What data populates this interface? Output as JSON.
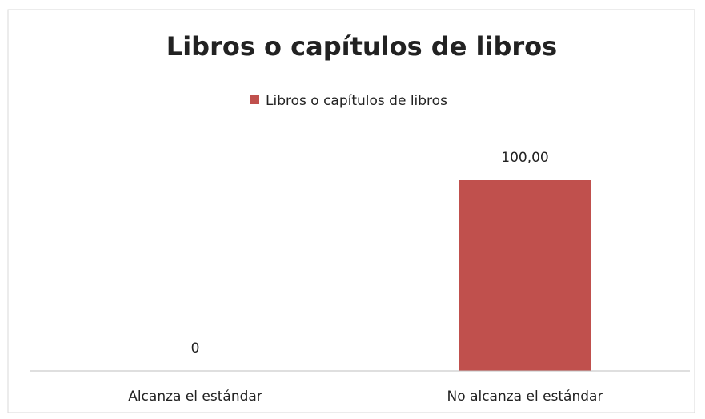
{
  "chart_data": {
    "type": "bar",
    "title": "Libros o capítulos de libros",
    "categories": [
      "Alcanza el estándar",
      "No alcanza el estándar"
    ],
    "series": [
      {
        "name": "Libros o capítulos de libros",
        "color": "#c0504d",
        "values": [
          0,
          100
        ],
        "value_labels": [
          "0",
          "100,00"
        ]
      }
    ],
    "legend": "top"
  }
}
